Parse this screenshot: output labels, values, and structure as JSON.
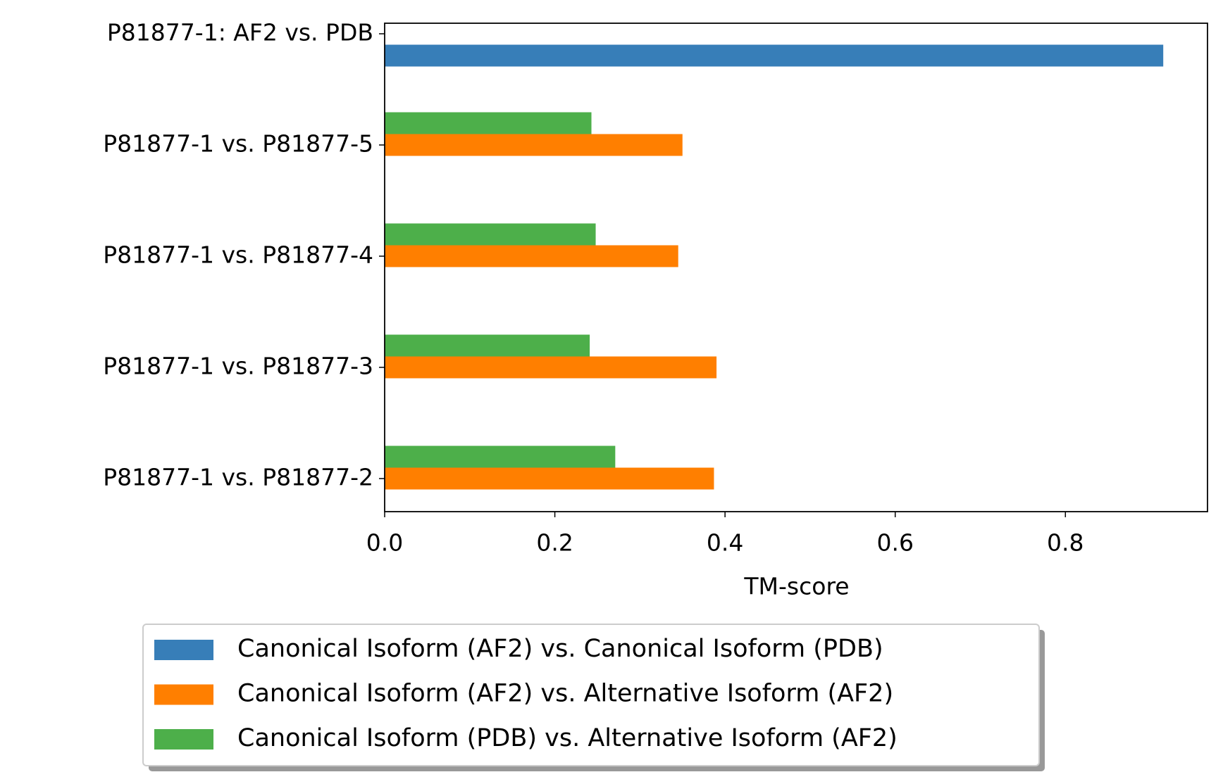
{
  "chart_data": {
    "type": "barh",
    "categories": [
      "P81877-1: AF2 vs. PDB",
      "P81877-1 vs. P81877-5",
      "P81877-1 vs. P81877-4",
      "P81877-1 vs. P81877-3",
      "P81877-1 vs. P81877-2"
    ],
    "series": [
      {
        "name": "Canonical Isoform (AF2) vs. Canonical Isoform (PDB)",
        "color": "#377eb8",
        "values": [
          0.915,
          null,
          null,
          null,
          null
        ]
      },
      {
        "name": "Canonical Isoform (AF2) vs. Alternative Isoform (AF2)",
        "color": "#ff7f00",
        "values": [
          null,
          0.35,
          0.345,
          0.39,
          0.387
        ]
      },
      {
        "name": "Canonical Isoform (PDB) vs. Alternative Isoform (AF2)",
        "color": "#4daf4a",
        "values": [
          null,
          0.243,
          0.248,
          0.241,
          0.271
        ]
      }
    ],
    "xlabel": "TM-score",
    "xlim": [
      0,
      0.967
    ],
    "xticks": [
      {
        "value": 0,
        "label": "0.0"
      },
      0.2,
      0.4,
      0.6,
      0.8
    ],
    "grid": false,
    "legend": "bottom"
  }
}
